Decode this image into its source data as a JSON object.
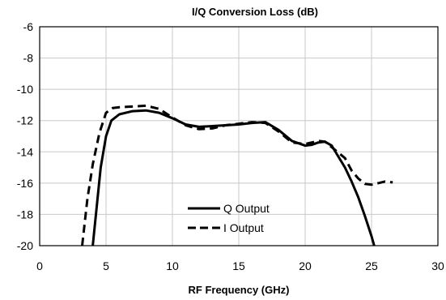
{
  "chart_data": {
    "type": "line",
    "title": "I/Q Conversion Loss (dB)",
    "xlabel": "RF Frequency (GHz)",
    "ylabel": "",
    "xlim": [
      0,
      30
    ],
    "ylim": [
      -20,
      -6
    ],
    "xticks": [
      0,
      5,
      10,
      15,
      20,
      25,
      30
    ],
    "yticks": [
      -6,
      -8,
      -10,
      -12,
      -14,
      -16,
      -18,
      -20
    ],
    "grid": true,
    "legend_position": "lower-center",
    "series": [
      {
        "name": "Q Output",
        "style": "solid",
        "color": "#000000",
        "points": [
          [
            4.0,
            -20.0
          ],
          [
            4.3,
            -17.5
          ],
          [
            4.6,
            -15.0
          ],
          [
            5.0,
            -13.0
          ],
          [
            5.4,
            -12.0
          ],
          [
            6.0,
            -11.6
          ],
          [
            7.0,
            -11.4
          ],
          [
            8.0,
            -11.35
          ],
          [
            9.0,
            -11.5
          ],
          [
            10.0,
            -11.85
          ],
          [
            11.0,
            -12.25
          ],
          [
            12.0,
            -12.4
          ],
          [
            13.0,
            -12.35
          ],
          [
            14.0,
            -12.3
          ],
          [
            15.0,
            -12.25
          ],
          [
            16.0,
            -12.15
          ],
          [
            17.0,
            -12.1
          ],
          [
            18.0,
            -12.6
          ],
          [
            19.0,
            -13.3
          ],
          [
            20.0,
            -13.6
          ],
          [
            20.5,
            -13.55
          ],
          [
            21.0,
            -13.4
          ],
          [
            21.5,
            -13.35
          ],
          [
            22.0,
            -13.6
          ],
          [
            22.5,
            -14.3
          ],
          [
            23.0,
            -15.0
          ],
          [
            23.5,
            -15.9
          ],
          [
            24.0,
            -16.9
          ],
          [
            24.5,
            -18.1
          ],
          [
            25.0,
            -19.4
          ],
          [
            25.2,
            -20.0
          ]
        ]
      },
      {
        "name": "I Output",
        "style": "dashed",
        "color": "#000000",
        "points": [
          [
            3.2,
            -20.0
          ],
          [
            3.6,
            -17.0
          ],
          [
            4.0,
            -14.8
          ],
          [
            4.5,
            -12.8
          ],
          [
            5.0,
            -11.5
          ],
          [
            5.5,
            -11.2
          ],
          [
            6.0,
            -11.15
          ],
          [
            7.0,
            -11.1
          ],
          [
            8.0,
            -11.05
          ],
          [
            9.0,
            -11.25
          ],
          [
            10.0,
            -11.8
          ],
          [
            11.0,
            -12.3
          ],
          [
            12.0,
            -12.55
          ],
          [
            13.0,
            -12.5
          ],
          [
            14.0,
            -12.3
          ],
          [
            15.0,
            -12.2
          ],
          [
            16.0,
            -12.1
          ],
          [
            17.0,
            -12.15
          ],
          [
            18.0,
            -12.7
          ],
          [
            19.0,
            -13.4
          ],
          [
            20.0,
            -13.5
          ],
          [
            20.5,
            -13.4
          ],
          [
            21.0,
            -13.3
          ],
          [
            21.5,
            -13.35
          ],
          [
            22.0,
            -13.7
          ],
          [
            23.0,
            -14.4
          ],
          [
            23.5,
            -15.2
          ],
          [
            24.0,
            -15.7
          ],
          [
            24.5,
            -16.05
          ],
          [
            25.0,
            -16.1
          ],
          [
            25.5,
            -16.0
          ],
          [
            26.0,
            -15.9
          ],
          [
            26.6,
            -15.95
          ]
        ]
      }
    ]
  }
}
